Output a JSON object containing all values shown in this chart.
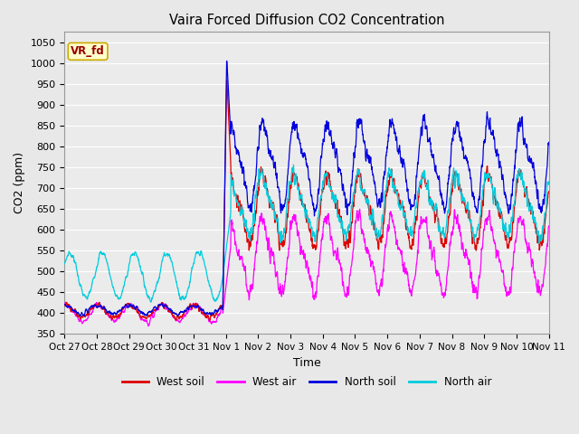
{
  "title": "Vaira Forced Diffusion CO2 Concentration",
  "xlabel": "Time",
  "ylabel": "CO2 (ppm)",
  "ylim": [
    350,
    1075
  ],
  "yticks": [
    350,
    400,
    450,
    500,
    550,
    600,
    650,
    700,
    750,
    800,
    850,
    900,
    950,
    1000,
    1050
  ],
  "legend_label": "VR_fd",
  "legend_box_facecolor": "#ffffcc",
  "legend_box_edgecolor": "#ccaa00",
  "series_colors": {
    "west_soil": "#dd0000",
    "west_air": "#ff00ff",
    "north_soil": "#0000dd",
    "north_air": "#00ccdd"
  },
  "x_tick_labels": [
    "Oct 27",
    "Oct 28",
    "Oct 29",
    "Oct 30",
    "Oct 31",
    "Nov 1",
    "Nov 2",
    "Nov 3",
    "Nov 4",
    "Nov 5",
    "Nov 6",
    "Nov 7",
    "Nov 8",
    "Nov 9",
    "Nov 10",
    "Nov 11"
  ],
  "bg_color": "#e8e8e8",
  "plot_bg_color": "#ebebeb",
  "grid_color": "#ffffff"
}
